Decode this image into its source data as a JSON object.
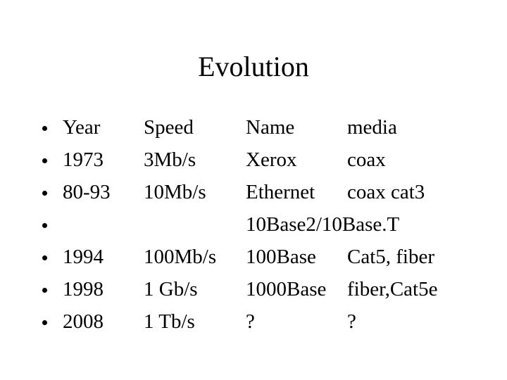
{
  "title": "Evolution",
  "rows": [
    {
      "year": "Year",
      "speed": "Speed",
      "name": "Name",
      "media": "media"
    },
    {
      "year": "1973",
      "speed": "3Mb/s",
      "name": "Xerox",
      "media": "coax"
    },
    {
      "year": "80-93",
      "speed": "10Mb/s",
      "name": "Ethernet",
      "media": "coax cat3"
    },
    {
      "name": "10Base2/10Base.T"
    },
    {
      "year": "1994",
      "speed": "100Mb/s",
      "name": "100Base",
      "media": "Cat5, fiber"
    },
    {
      "year": "1998",
      "speed": "1 Gb/s",
      "name": "1000Base",
      "media": "fiber,Cat5e"
    },
    {
      "year": "2008",
      "speed": "1 Tb/s",
      "name": "?",
      "media": "?"
    }
  ]
}
